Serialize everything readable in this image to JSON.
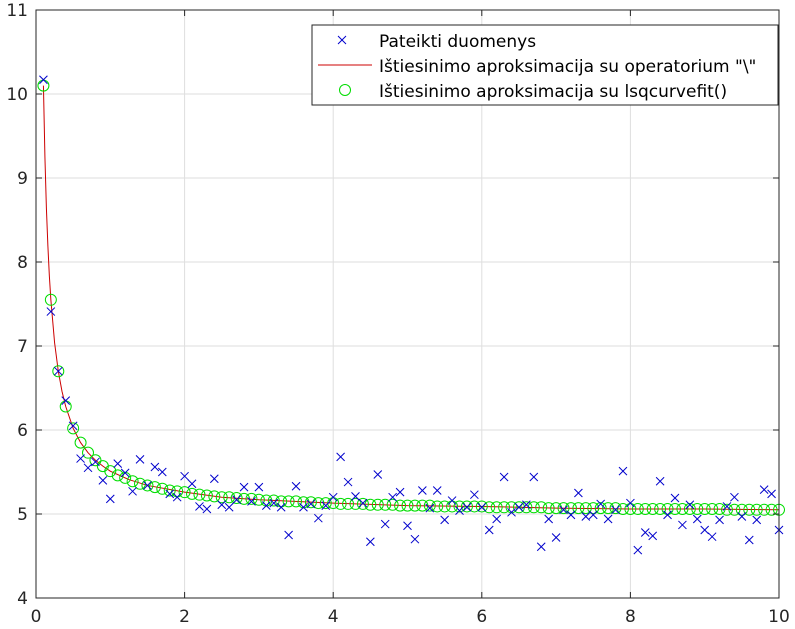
{
  "chart_data": {
    "type": "scatter",
    "xlim": [
      0,
      10
    ],
    "ylim": [
      4,
      11
    ],
    "xticks": [
      0,
      2,
      4,
      6,
      8,
      10
    ],
    "yticks": [
      4,
      5,
      6,
      7,
      8,
      9,
      10,
      11
    ],
    "xtick_labels": [
      "0",
      "2",
      "4",
      "6",
      "8",
      "10"
    ],
    "ytick_labels": [
      "4",
      "5",
      "6",
      "7",
      "8",
      "9",
      "10",
      "11"
    ],
    "grid": true,
    "legend_position": "top-right",
    "title": "",
    "xlabel": "",
    "ylabel": "",
    "series": [
      {
        "name": "Pateikti duomenys",
        "marker": "x",
        "color": "#0000cc",
        "x": [
          0.1,
          0.2,
          0.3,
          0.4,
          0.5,
          0.6,
          0.7,
          0.8,
          0.9,
          1.0,
          1.1,
          1.2,
          1.3,
          1.4,
          1.5,
          1.6,
          1.7,
          1.8,
          1.9,
          2.0,
          2.1,
          2.2,
          2.3,
          2.4,
          2.5,
          2.6,
          2.7,
          2.8,
          2.9,
          3.0,
          3.1,
          3.2,
          3.3,
          3.4,
          3.5,
          3.6,
          3.7,
          3.8,
          3.9,
          4.0,
          4.1,
          4.2,
          4.3,
          4.4,
          4.5,
          4.6,
          4.7,
          4.8,
          4.9,
          5.0,
          5.1,
          5.2,
          5.3,
          5.4,
          5.5,
          5.6,
          5.7,
          5.8,
          5.9,
          6.0,
          6.1,
          6.2,
          6.3,
          6.4,
          6.5,
          6.6,
          6.7,
          6.8,
          6.9,
          7.0,
          7.1,
          7.2,
          7.3,
          7.4,
          7.5,
          7.6,
          7.7,
          7.8,
          7.9,
          8.0,
          8.1,
          8.2,
          8.3,
          8.4,
          8.5,
          8.6,
          8.7,
          8.8,
          8.9,
          9.0,
          9.1,
          9.2,
          9.3,
          9.4,
          9.5,
          9.6,
          9.7,
          9.8,
          9.9,
          10.0
        ],
        "y": [
          10.17,
          7.41,
          6.7,
          6.35,
          6.05,
          5.66,
          5.55,
          5.62,
          5.4,
          5.18,
          5.6,
          5.49,
          5.27,
          5.65,
          5.34,
          5.56,
          5.5,
          5.24,
          5.2,
          5.45,
          5.36,
          5.09,
          5.06,
          5.42,
          5.11,
          5.08,
          5.17,
          5.32,
          5.15,
          5.32,
          5.1,
          5.13,
          5.08,
          4.75,
          5.33,
          5.08,
          5.12,
          4.95,
          5.1,
          5.2,
          5.68,
          5.38,
          5.21,
          5.13,
          4.67,
          5.47,
          4.88,
          5.2,
          5.26,
          4.86,
          4.7,
          5.28,
          5.07,
          5.28,
          4.93,
          5.16,
          5.04,
          5.08,
          5.23,
          5.08,
          4.81,
          4.94,
          5.44,
          5.02,
          5.08,
          5.11,
          5.44,
          4.61,
          4.94,
          4.72,
          5.05,
          4.99,
          5.25,
          4.97,
          4.99,
          5.12,
          4.94,
          5.05,
          5.51,
          5.13,
          4.57,
          4.78,
          4.74,
          5.39,
          4.99,
          5.19,
          4.87,
          5.11,
          4.94,
          4.81,
          4.73,
          4.93,
          5.09,
          5.2,
          4.97,
          4.69,
          4.93,
          5.29,
          5.24,
          4.81
        ]
      },
      {
        "name": "Ištiesinimo aproksimacija su operatorium \"\\\"",
        "line": "solid",
        "color": "#cc0000",
        "model": "y = 5 + 0.5102 / x",
        "x": [
          0.1,
          0.12,
          0.14,
          0.16,
          0.18,
          0.2,
          0.25,
          0.3,
          0.35,
          0.4,
          0.5,
          0.6,
          0.7,
          0.8,
          0.9,
          1.0,
          1.25,
          1.5,
          2.0,
          2.5,
          3.0,
          4.0,
          5.0,
          6.0,
          7.0,
          8.0,
          9.0,
          10.0
        ],
        "y": [
          10.1,
          9.25,
          8.64,
          8.19,
          7.83,
          7.55,
          7.04,
          6.7,
          6.46,
          6.28,
          6.02,
          5.85,
          5.73,
          5.64,
          5.57,
          5.51,
          5.41,
          5.34,
          5.26,
          5.2,
          5.17,
          5.13,
          5.1,
          5.09,
          5.07,
          5.06,
          5.06,
          5.05
        ]
      },
      {
        "name": "Ištiesinimo aproksimacija su lsqcurvefit()",
        "marker": "o",
        "color": "#00dd00",
        "model": "y = 5 + 0.5102 / x",
        "x": [
          0.1,
          0.2,
          0.3,
          0.4,
          0.5,
          0.6,
          0.7,
          0.8,
          0.9,
          1.0,
          1.1,
          1.2,
          1.3,
          1.4,
          1.5,
          1.6,
          1.7,
          1.8,
          1.9,
          2.0,
          2.1,
          2.2,
          2.3,
          2.4,
          2.5,
          2.6,
          2.7,
          2.8,
          2.9,
          3.0,
          3.1,
          3.2,
          3.3,
          3.4,
          3.5,
          3.6,
          3.7,
          3.8,
          3.9,
          4.0,
          4.1,
          4.2,
          4.3,
          4.4,
          4.5,
          4.6,
          4.7,
          4.8,
          4.9,
          5.0,
          5.1,
          5.2,
          5.3,
          5.4,
          5.5,
          5.6,
          5.7,
          5.8,
          5.9,
          6.0,
          6.1,
          6.2,
          6.3,
          6.4,
          6.5,
          6.6,
          6.7,
          6.8,
          6.9,
          7.0,
          7.1,
          7.2,
          7.3,
          7.4,
          7.5,
          7.6,
          7.7,
          7.8,
          7.9,
          8.0,
          8.1,
          8.2,
          8.3,
          8.4,
          8.5,
          8.6,
          8.7,
          8.8,
          8.9,
          9.0,
          9.1,
          9.2,
          9.3,
          9.4,
          9.5,
          9.6,
          9.7,
          9.8,
          9.9,
          10.0
        ],
        "y": [
          10.1,
          7.55,
          6.7,
          6.28,
          6.02,
          5.85,
          5.73,
          5.64,
          5.57,
          5.51,
          5.46,
          5.43,
          5.39,
          5.36,
          5.34,
          5.32,
          5.3,
          5.28,
          5.27,
          5.26,
          5.24,
          5.23,
          5.22,
          5.21,
          5.2,
          5.2,
          5.19,
          5.18,
          5.18,
          5.17,
          5.16,
          5.16,
          5.15,
          5.15,
          5.15,
          5.14,
          5.14,
          5.13,
          5.13,
          5.13,
          5.12,
          5.12,
          5.12,
          5.12,
          5.11,
          5.11,
          5.11,
          5.11,
          5.1,
          5.1,
          5.1,
          5.1,
          5.1,
          5.09,
          5.09,
          5.09,
          5.09,
          5.09,
          5.09,
          5.09,
          5.08,
          5.08,
          5.08,
          5.08,
          5.08,
          5.08,
          5.08,
          5.08,
          5.07,
          5.07,
          5.07,
          5.07,
          5.07,
          5.07,
          5.07,
          5.07,
          5.07,
          5.07,
          5.06,
          5.06,
          5.06,
          5.06,
          5.06,
          5.06,
          5.06,
          5.06,
          5.06,
          5.06,
          5.06,
          5.06,
          5.06,
          5.06,
          5.05,
          5.05,
          5.05,
          5.05,
          5.05,
          5.05,
          5.05,
          5.05
        ]
      }
    ]
  }
}
